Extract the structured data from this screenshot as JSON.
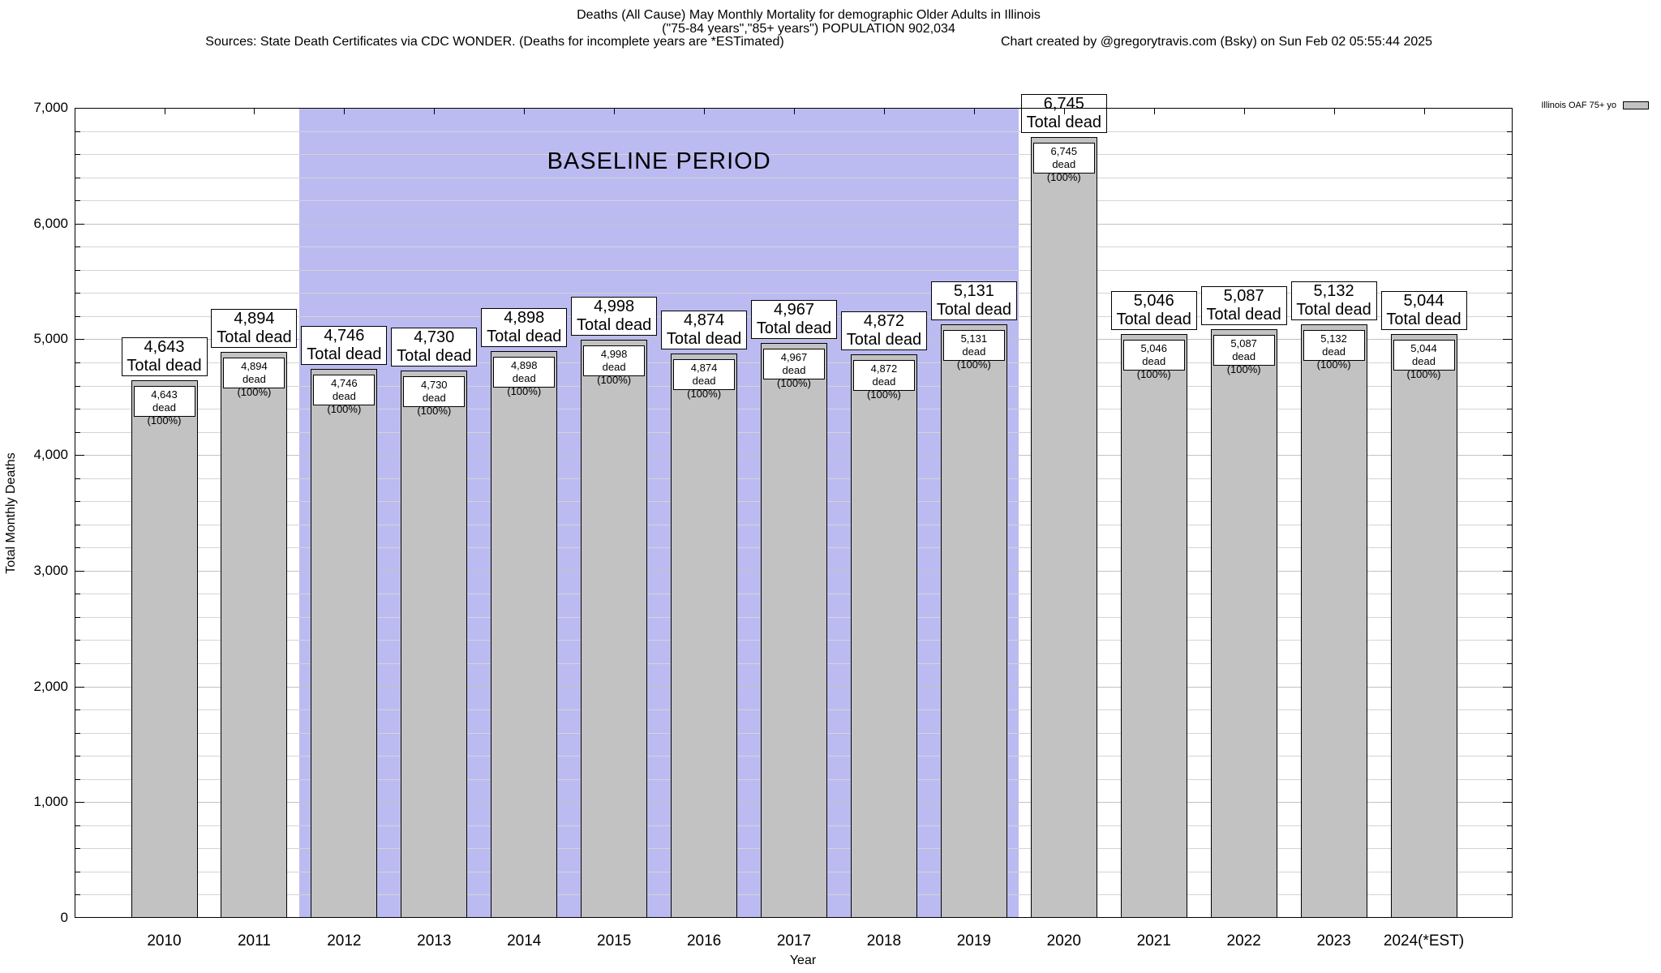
{
  "header": {
    "title_line1": "Deaths (All Cause) May Monthly Mortality for demographic Older Adults in Illinois",
    "title_line2": "(\"75-84 years\",\"85+ years\") POPULATION 902,034",
    "sources": "Sources: State Death Certificates via CDC WONDER. (Deaths for incomplete years are *ESTimated)",
    "credit": "Chart created by @gregorytravis.com (Bsky) on Sun Feb 02 05:55:44 2025"
  },
  "legend": {
    "label": "Illinois OAF 75+ yo"
  },
  "labels": {
    "total_dead": "Total dead",
    "dead_pct": "dead (100%)",
    "baseline": "BASELINE PERIOD"
  },
  "axes": {
    "y_title": "Total Monthly Deaths",
    "x_title": "Year",
    "y_ticks": [
      "0",
      "1,000",
      "2,000",
      "3,000",
      "4,000",
      "5,000",
      "6,000",
      "7,000"
    ]
  },
  "colors": {
    "baseline_shade": "#bbbbf2",
    "bar_fill": "#c2c2c2",
    "bar_border": "#000000",
    "grid_minor": "#d4d4d4",
    "grid_major": "#c2c2c2",
    "label_box_bg": "#ffffff"
  },
  "chart_data": {
    "type": "bar",
    "title": "Deaths (All Cause) May Monthly Mortality for demographic Older Adults in Illinois",
    "subtitle": "(\"75-84 years\",\"85+ years\") POPULATION 902,034",
    "xlabel": "Year",
    "ylabel": "Total Monthly Deaths",
    "ylim": [
      0,
      7000
    ],
    "y_major_step": 1000,
    "y_minor_step": 200,
    "grid": true,
    "legend_position": "top-right",
    "categories": [
      "2010",
      "2011",
      "2012",
      "2013",
      "2014",
      "2015",
      "2016",
      "2017",
      "2018",
      "2019",
      "2020",
      "2021",
      "2022",
      "2023",
      "2024(*EST)"
    ],
    "series": [
      {
        "name": "Illinois OAF 75+ yo",
        "values": [
          4643,
          4894,
          4746,
          4730,
          4898,
          4998,
          4874,
          4967,
          4872,
          5131,
          6745,
          5046,
          5087,
          5132,
          5044
        ],
        "value_labels": [
          "4,643",
          "4,894",
          "4,746",
          "4,730",
          "4,898",
          "4,998",
          "4,874",
          "4,967",
          "4,872",
          "5,131",
          "6,745",
          "5,046",
          "5,087",
          "5,132",
          "5,044"
        ]
      }
    ],
    "baseline_region": {
      "label": "BASELINE PERIOD",
      "from_category": "2012",
      "to_category": "2019"
    }
  }
}
